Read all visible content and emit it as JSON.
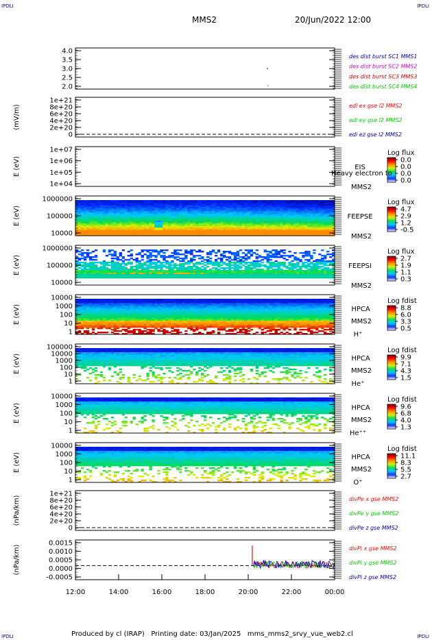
{
  "corners": {
    "tl": "IPDLI",
    "tr": "IPDLI",
    "bl": "IPDLI",
    "br": "IPDLI"
  },
  "header": {
    "title": "MMS2",
    "datetime": "20/Jun/2022 12:00"
  },
  "footer": "Produced by cl (IRAP)   Printing date: 03/Jan/2025   mms_mms2_srvy_vue_web2.cl",
  "colors": {
    "mms1": "#0000cc",
    "mms2": "#cc00cc",
    "mms3": "#cc0000",
    "mms4": "#00cc00",
    "x": "#ff0000",
    "y": "#00cc00",
    "z": "#0000cc"
  },
  "time_axis": {
    "ticks": [
      "12:00",
      "14:00",
      "16:00",
      "18:00",
      "20:00",
      "22:00",
      "00:00"
    ],
    "start_hour": 12,
    "end_hour": 24
  },
  "colorbar_gradient": [
    "#ffffff",
    "#2030ff",
    "#00c8ff",
    "#00e060",
    "#d8f000",
    "#ff9000",
    "#ff0000",
    "#800000"
  ],
  "chart_data": [
    {
      "panel": "dist-burst",
      "type": "scatter",
      "ylim": [
        2.0,
        4.0
      ],
      "yticks": [
        "4.0",
        "3.5",
        "3.0",
        "2.5",
        "2.0"
      ],
      "legend": [
        {
          "text": "des dist burst SC1 MMS1",
          "color": "mms1"
        },
        {
          "text": "des dist burst SC2 MMS2",
          "color": "mms2"
        },
        {
          "text": "des dist burst SC3 MMS3",
          "color": "mms3"
        },
        {
          "text": "des dist burst SC4 MMS4",
          "color": "mms4"
        }
      ]
    },
    {
      "panel": "edi-e",
      "type": "line",
      "ylabel": "(mV/m)",
      "yticks": [
        "1e+21",
        "8e+20",
        "6e+20",
        "4e+20",
        "2e+20",
        "0"
      ],
      "legend": [
        {
          "text": "edi ex gse l2 MMS2",
          "color": "x"
        },
        {
          "text": "edi ey gse l2 MMS2",
          "color": "y"
        },
        {
          "text": "edi ez gse l2 MMS2",
          "color": "z"
        }
      ]
    },
    {
      "panel": "eis",
      "type": "heatmap",
      "ylabel": "E (eV)",
      "yticks": [
        "1e+07",
        "1e+06",
        "1e+05",
        "1e+04"
      ],
      "yscale": "log",
      "labels": [
        "EIS",
        "MMS2"
      ],
      "overlay": "Heavy electron to",
      "cb_title": "Log flux",
      "cb_values": [
        "0.0",
        "0.0",
        "0.0",
        "0.0"
      ]
    },
    {
      "panel": "feeps-e",
      "type": "heatmap",
      "ylabel": "E (eV)",
      "yticks": [
        "1000000",
        "100000",
        "10000"
      ],
      "yscale": "log",
      "labels": [
        "FEEPSE",
        "MMS2"
      ],
      "cb_title": "Log flux",
      "cb_values": [
        "4.7",
        "2.9",
        "1.2",
        "-0.5"
      ]
    },
    {
      "panel": "feeps-i",
      "type": "heatmap",
      "ylabel": "E (eV)",
      "yticks": [
        "1000000",
        "100000",
        "10000"
      ],
      "yscale": "log",
      "labels": [
        "FEEPSI",
        "MMS2"
      ],
      "cb_title": "Log flux",
      "cb_values": [
        "2.7",
        "1.9",
        "1.1",
        "0.3"
      ]
    },
    {
      "panel": "hpca-h",
      "type": "heatmap",
      "ylabel": "E (eV)",
      "yticks": [
        "10000",
        "1000",
        "100",
        "10",
        "1"
      ],
      "yscale": "log",
      "labels": [
        "HPCA",
        "MMS2",
        "H⁺"
      ],
      "cb_title": "Log fdist",
      "cb_values": [
        "8.8",
        "6.0",
        "3.3",
        "0.5"
      ]
    },
    {
      "panel": "hpca-he",
      "type": "heatmap",
      "ylabel": "E (eV)",
      "yticks": [
        "100000",
        "10000",
        "1000",
        "100",
        "10",
        "1"
      ],
      "yscale": "log",
      "labels": [
        "HPCA",
        "MMS2",
        "He⁺"
      ],
      "cb_title": "Log fdist",
      "cb_values": [
        "9.9",
        "7.1",
        "4.3",
        "1.5"
      ]
    },
    {
      "panel": "hpca-he2",
      "type": "heatmap",
      "ylabel": "E (eV)",
      "yticks": [
        "10000",
        "1000",
        "100",
        "10",
        "1"
      ],
      "yscale": "log",
      "labels": [
        "HPCA",
        "MMS2",
        "He⁺⁺"
      ],
      "cb_title": "Log fdist",
      "cb_values": [
        "9.6",
        "6.8",
        "4.0",
        "1.3"
      ]
    },
    {
      "panel": "hpca-o",
      "type": "heatmap",
      "ylabel": "E (eV)",
      "yticks": [
        "10000",
        "1000",
        "100",
        "10",
        "1"
      ],
      "yscale": "log",
      "labels": [
        "HPCA",
        "MMS2",
        "O⁺"
      ],
      "cb_title": "Log fdist",
      "cb_values": [
        "11.1",
        "8.3",
        "5.5",
        "2.7"
      ]
    },
    {
      "panel": "divpe",
      "type": "line",
      "ylabel": "(nPa/km)",
      "yticks": [
        "1e+21",
        "8e+20",
        "6e+20",
        "4e+20",
        "2e+20",
        "0"
      ],
      "legend": [
        {
          "text": "divPe x gse MMS2",
          "color": "x"
        },
        {
          "text": "divPe y gse MMS2",
          "color": "y"
        },
        {
          "text": "divPe z gse MMS2",
          "color": "z"
        }
      ]
    },
    {
      "panel": "divpi",
      "type": "line",
      "ylabel": "(nPa/km)",
      "ylim": [
        -0.0008,
        0.0016
      ],
      "yticks": [
        "0.0015",
        "0.0010",
        "0.0005",
        "0.0000",
        "-0.0005"
      ],
      "data_start_hour": 20.25,
      "spike": 0.0014,
      "band": [
        -0.0002,
        0.0004
      ],
      "legend": [
        {
          "text": "divPi x gse MMS2",
          "color": "x"
        },
        {
          "text": "divPi y gse MMS2",
          "color": "y"
        },
        {
          "text": "divPi z gse MMS2",
          "color": "z"
        }
      ]
    }
  ]
}
